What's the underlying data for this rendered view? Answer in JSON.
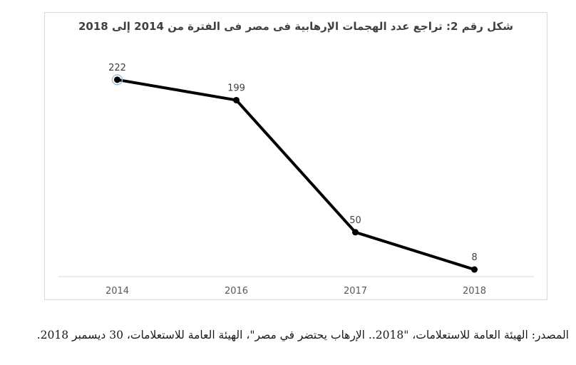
{
  "chart_data": {
    "type": "line",
    "title": "شكل رقم 2: تراجع عدد الهجمات الإرهابية فى مصر فى الفترة من 2014 إلى 2018",
    "categories": [
      "2014",
      "2016",
      "2017",
      "2018"
    ],
    "values": [
      222,
      199,
      50,
      8
    ],
    "data_labels": [
      "222",
      "199",
      "50",
      "8"
    ],
    "series_name": "",
    "xlabel": "",
    "ylabel": "",
    "ylim": [
      0,
      250
    ],
    "grid": false,
    "legend": "none",
    "label_position": "above",
    "colors": {
      "line": "#000000",
      "marker": "#000000",
      "first_marker_ring": "#9dc3e6",
      "axis_line": "#d9d9d9",
      "plot_border": "#d9d9d9",
      "title_text": "#404040",
      "data_label_text": "#404040",
      "tick_label_text": "#595959",
      "background": "#ffffff"
    }
  },
  "source_note": "المصدر: الهيئة العامة للاستعلامات، \"2018.. الإرهاب يحتضر في مصر\"، الهيئة العامة للاستعلامات، 30 ديسمبر 2018."
}
